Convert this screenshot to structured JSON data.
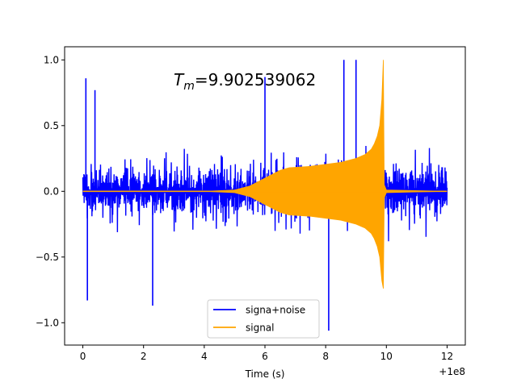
{
  "chart_data": {
    "type": "line",
    "annotation": "9.902539062",
    "annotation_symbol": "T",
    "annotation_subscript": "m",
    "xlabel": "Time (s)",
    "ylabel": "",
    "x_offset_label": "+1e8",
    "xlim": [
      -0.6,
      12.6
    ],
    "ylim": [
      -1.17,
      1.1
    ],
    "x_ticks": [
      0,
      2,
      4,
      6,
      8,
      10,
      12
    ],
    "x_tick_labels": [
      "0",
      "2",
      "4",
      "6",
      "8",
      "10",
      "12"
    ],
    "y_ticks": [
      -1.0,
      -0.5,
      0.0,
      0.5,
      1.0
    ],
    "y_tick_labels": [
      "−1.0",
      "−0.5",
      "0.0",
      "0.5",
      "1.0"
    ],
    "grid": false,
    "legend_position": "bottom-center",
    "series": [
      {
        "name": "signa+noise",
        "color": "#0000ff",
        "description_shape": "dense noise",
        "x_range": [
          0,
          12
        ],
        "amplitude_typical": 0.5,
        "y_peaks": [
          {
            "x": 0.1,
            "y": 0.86
          },
          {
            "x": 0.15,
            "y": -0.83
          },
          {
            "x": 0.4,
            "y": 0.77
          },
          {
            "x": 2.3,
            "y": -0.87
          },
          {
            "x": 8.1,
            "y": -1.06
          },
          {
            "x": 8.6,
            "y": 1.0
          },
          {
            "x": 9.0,
            "y": 1.0
          },
          {
            "x": 6.0,
            "y": 0.87
          }
        ]
      },
      {
        "name": "signal",
        "color": "#ffa500",
        "description_shape": "chirp envelope",
        "x": [
          0,
          4.0,
          5.0,
          5.5,
          6.0,
          6.5,
          6.8,
          7.5,
          8.5,
          9.0,
          9.3,
          9.5,
          9.6,
          9.7,
          9.78,
          9.85,
          9.9,
          9.93,
          10.0,
          12.0
        ],
        "envelope_upper": [
          0,
          0.0,
          0.01,
          0.04,
          0.1,
          0.16,
          0.18,
          0.19,
          0.22,
          0.25,
          0.28,
          0.32,
          0.36,
          0.42,
          0.5,
          0.7,
          1.0,
          0.05,
          0.01,
          0.0
        ],
        "envelope_lower": [
          0,
          0.0,
          -0.01,
          -0.04,
          -0.1,
          -0.16,
          -0.18,
          -0.19,
          -0.22,
          -0.25,
          -0.28,
          -0.32,
          -0.36,
          -0.42,
          -0.5,
          -0.68,
          -0.74,
          -0.05,
          -0.01,
          0.0
        ]
      }
    ]
  }
}
